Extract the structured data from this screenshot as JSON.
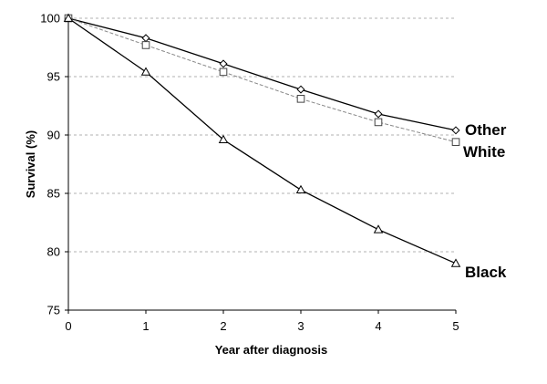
{
  "chart_data": {
    "type": "line",
    "x": [
      0,
      1,
      2,
      3,
      4,
      5
    ],
    "xlabel": "Year after diagnosis",
    "ylabel": "Survival (%)",
    "xlim": [
      0,
      5
    ],
    "ylim": [
      75,
      100
    ],
    "x_ticks": [
      "0",
      "1",
      "2",
      "3",
      "4",
      "5"
    ],
    "y_ticks": [
      "75",
      "80",
      "85",
      "90",
      "95",
      "100"
    ],
    "grid": "horizontal dashed",
    "series": [
      {
        "name": "Other",
        "marker": "diamond",
        "line_style": "solid",
        "color": "#000000",
        "values": [
          100,
          98.3,
          96.1,
          93.9,
          91.8,
          90.4
        ]
      },
      {
        "name": "White",
        "marker": "square",
        "line_style": "dashed",
        "color": "#888888",
        "values": [
          100,
          97.7,
          95.4,
          93.1,
          91.1,
          89.4
        ]
      },
      {
        "name": "Black",
        "marker": "triangle",
        "line_style": "solid",
        "color": "#000000",
        "values": [
          100,
          95.4,
          89.6,
          85.3,
          81.9,
          79.0
        ]
      }
    ]
  }
}
